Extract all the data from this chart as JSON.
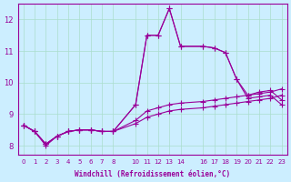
{
  "xlabel": "Windchill (Refroidissement éolien,°C)",
  "background_color": "#cceeff",
  "grid_color": "#aaddcc",
  "line_color": "#990099",
  "xlim": [
    -0.5,
    23.5
  ],
  "ylim": [
    7.7,
    12.5
  ],
  "xticks": [
    0,
    1,
    2,
    3,
    4,
    5,
    6,
    7,
    8,
    10,
    11,
    12,
    13,
    14,
    16,
    17,
    18,
    19,
    20,
    21,
    22,
    23
  ],
  "yticks": [
    8,
    9,
    10,
    11,
    12
  ],
  "x_indices": [
    0,
    1,
    2,
    3,
    4,
    5,
    6,
    7,
    8,
    10,
    11,
    12,
    13,
    14,
    16,
    17,
    18,
    19,
    20,
    21,
    22,
    23
  ],
  "series": [
    [
      8.65,
      8.45,
      8.0,
      8.3,
      8.45,
      8.5,
      8.5,
      8.45,
      8.45,
      9.3,
      11.5,
      11.5,
      12.35,
      11.15,
      11.15,
      11.1,
      10.95,
      10.1,
      9.6,
      9.7,
      9.75,
      9.45
    ],
    [
      8.65,
      8.45,
      8.05,
      8.3,
      8.45,
      8.5,
      8.5,
      8.45,
      8.45,
      9.3,
      11.5,
      11.5,
      12.35,
      11.15,
      11.15,
      11.1,
      10.95,
      10.1,
      9.5,
      9.55,
      9.6,
      9.3
    ],
    [
      8.65,
      8.45,
      8.05,
      8.3,
      8.45,
      8.5,
      8.5,
      8.45,
      8.45,
      8.8,
      9.1,
      9.2,
      9.3,
      9.35,
      9.4,
      9.45,
      9.5,
      9.55,
      9.6,
      9.65,
      9.7,
      9.8
    ],
    [
      8.65,
      8.45,
      8.05,
      8.3,
      8.45,
      8.5,
      8.5,
      8.45,
      8.45,
      8.7,
      8.9,
      9.0,
      9.1,
      9.15,
      9.2,
      9.25,
      9.3,
      9.35,
      9.4,
      9.45,
      9.5,
      9.6
    ]
  ]
}
